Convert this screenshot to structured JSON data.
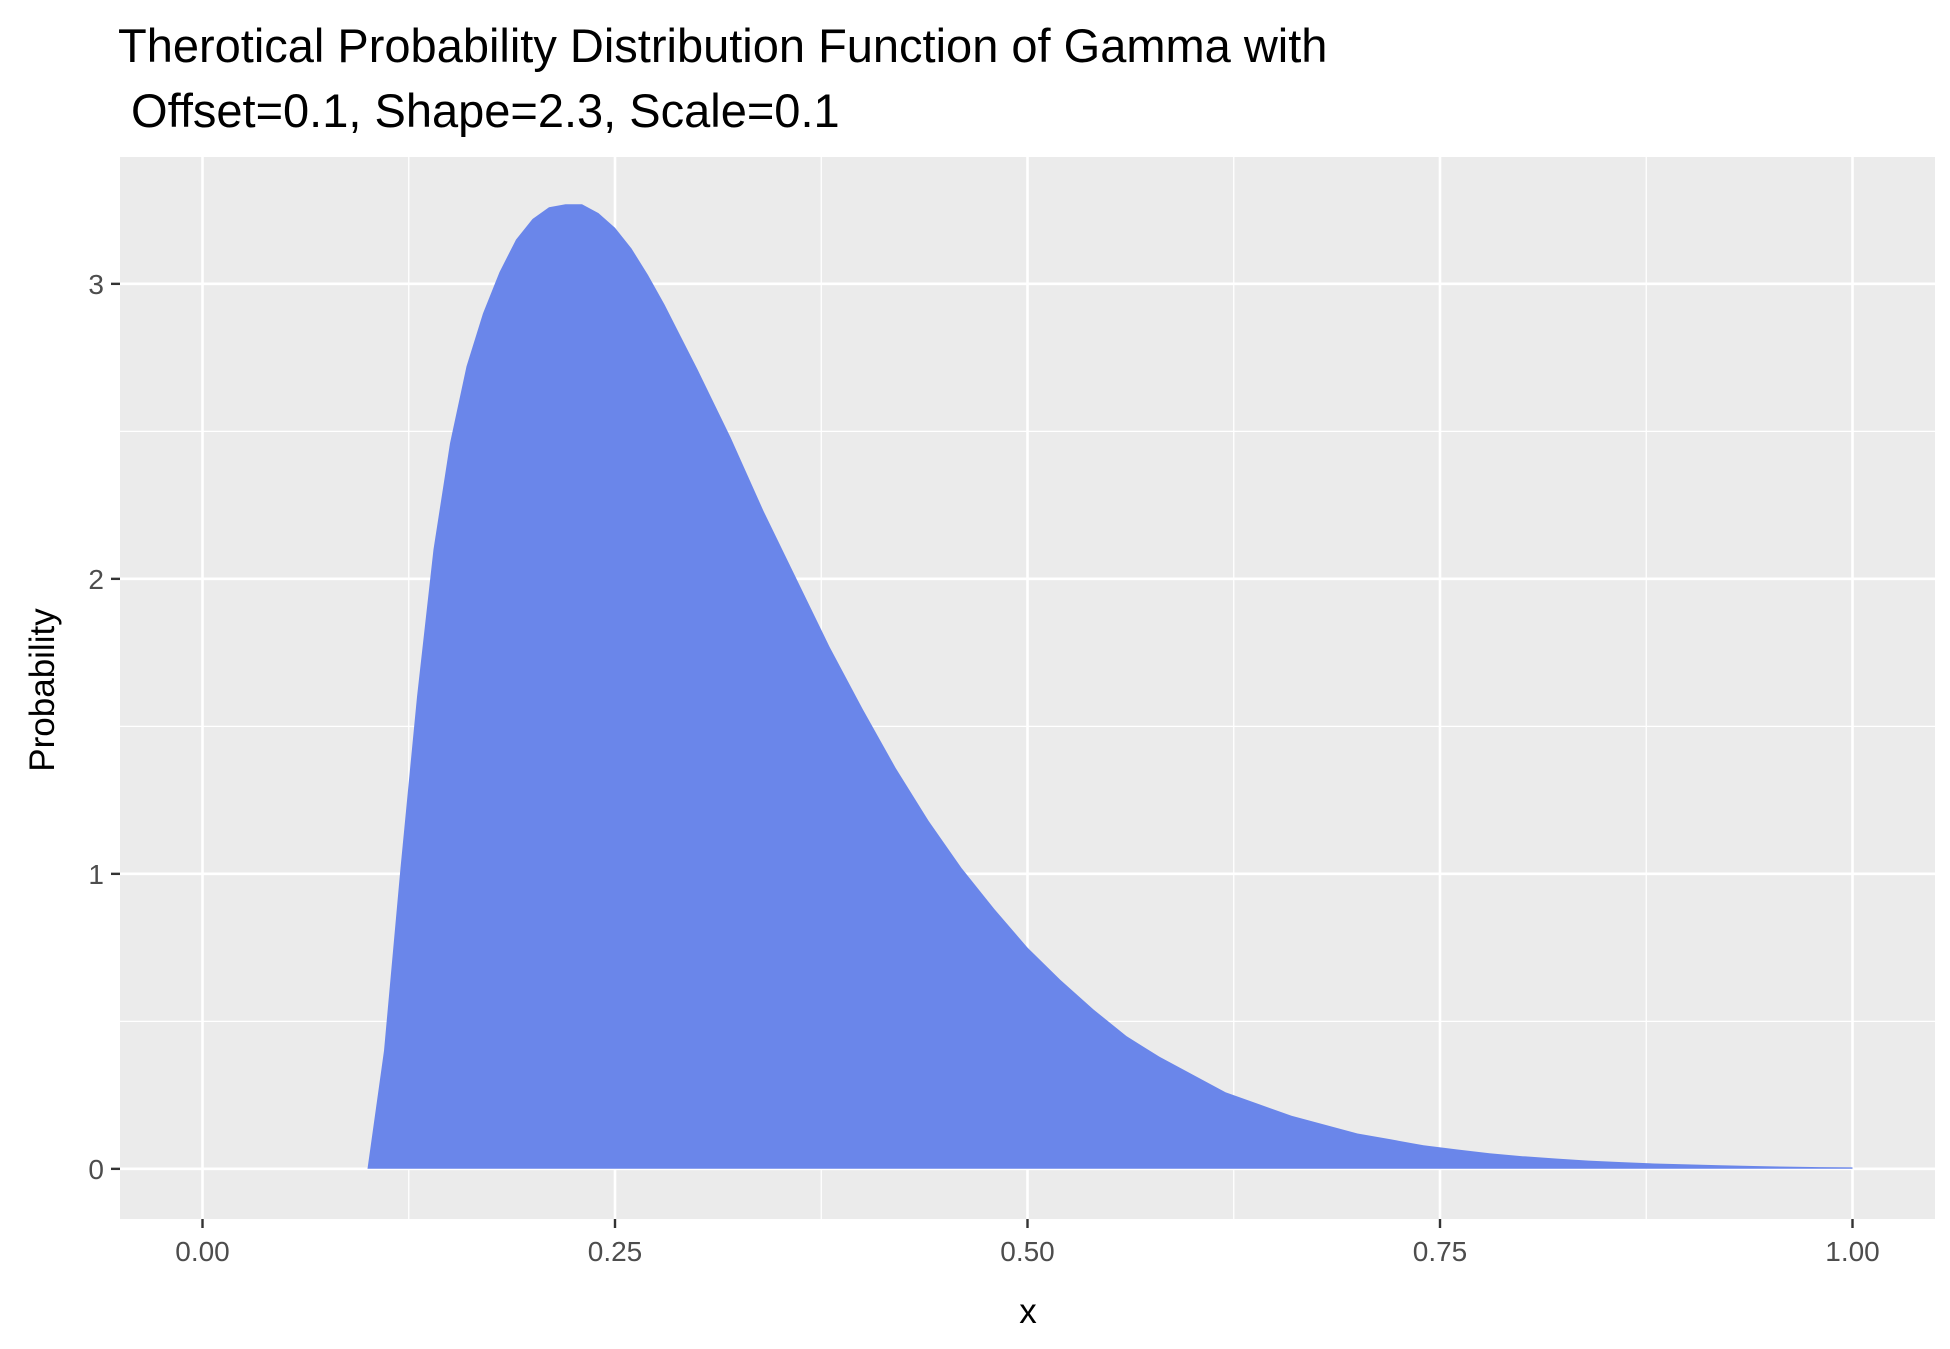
{
  "chart_data": {
    "type": "area",
    "title_lines": [
      "Therotical Probability Distribution Function of Gamma with",
      " Offset=0.1, Shape=2.3, Scale=0.1"
    ],
    "xlabel": "x",
    "ylabel": "Probability",
    "xlim": [
      -0.05,
      1.05
    ],
    "ylim": [
      -0.17,
      3.43
    ],
    "x_ticks": [
      0,
      0.25,
      0.5,
      0.75,
      1
    ],
    "x_tick_labels": [
      "0.00",
      "0.25",
      "0.50",
      "0.75",
      "1.00"
    ],
    "y_ticks": [
      0,
      1,
      2,
      3
    ],
    "y_tick_labels": [
      "0",
      "1",
      "2",
      "3"
    ],
    "grid": true,
    "legend": "none",
    "fill_color": "#6a86ea",
    "panel_background": "#ebebeb",
    "grid_color": "#ffffff",
    "series": [
      {
        "x": [
          0.1,
          0.11,
          0.12,
          0.13,
          0.14,
          0.15,
          0.16,
          0.17,
          0.18,
          0.19,
          0.2,
          0.21,
          0.22,
          0.23,
          0.24,
          0.25,
          0.26,
          0.27,
          0.28,
          0.29,
          0.3,
          0.32,
          0.34,
          0.36,
          0.38,
          0.4,
          0.42,
          0.44,
          0.46,
          0.48,
          0.5,
          0.52,
          0.54,
          0.56,
          0.58,
          0.6,
          0.62,
          0.64,
          0.66,
          0.68,
          0.7,
          0.72,
          0.74,
          0.76,
          0.78,
          0.8,
          0.82,
          0.84,
          0.86,
          0.88,
          0.9,
          0.92,
          0.94,
          0.96,
          0.98,
          1.0
        ],
        "values": [
          0.0,
          0.4,
          1.02,
          1.6,
          2.1,
          2.46,
          2.72,
          2.9,
          3.04,
          3.15,
          3.22,
          3.26,
          3.27,
          3.27,
          3.24,
          3.19,
          3.12,
          3.03,
          2.93,
          2.82,
          2.71,
          2.48,
          2.23,
          2.0,
          1.77,
          1.56,
          1.36,
          1.18,
          1.02,
          0.88,
          0.75,
          0.64,
          0.54,
          0.45,
          0.38,
          0.32,
          0.26,
          0.22,
          0.18,
          0.15,
          0.12,
          0.1,
          0.08,
          0.066,
          0.053,
          0.043,
          0.035,
          0.028,
          0.023,
          0.018,
          0.015,
          0.012,
          0.0095,
          0.0076,
          0.0061,
          0.005
        ]
      }
    ]
  }
}
